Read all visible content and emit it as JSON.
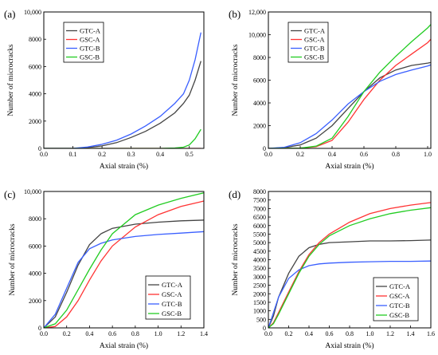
{
  "chart_data": [
    {
      "type": "line",
      "panel_label": "(a)",
      "xlabel": "Axial strain (%)",
      "ylabel": "Number of microcracks",
      "xlim": [
        0,
        0.55
      ],
      "ylim": [
        0,
        10000
      ],
      "xticks": [
        "0.0",
        "0.1",
        "0.2",
        "0.3",
        "0.4",
        "0.5"
      ],
      "yticks": [
        "0",
        "2000",
        "4000",
        "6000",
        "8000",
        "10,000"
      ],
      "legend_position": "top-left",
      "series": [
        {
          "name": "GTC-A",
          "color": "#444444",
          "x": [
            0,
            0.1,
            0.15,
            0.2,
            0.25,
            0.3,
            0.35,
            0.4,
            0.45,
            0.48,
            0.5,
            0.52,
            0.54
          ],
          "y": [
            0,
            0,
            60,
            180,
            420,
            800,
            1250,
            1850,
            2600,
            3300,
            3900,
            5000,
            6400
          ]
        },
        {
          "name": "GSC-A",
          "color": "#ff3333",
          "x": [
            0,
            0.3,
            0.4,
            0.5,
            0.54
          ],
          "y": [
            0,
            0,
            0,
            0,
            0
          ]
        },
        {
          "name": "GTC-B",
          "color": "#3a5fff",
          "x": [
            0,
            0.1,
            0.15,
            0.2,
            0.25,
            0.3,
            0.35,
            0.4,
            0.45,
            0.48,
            0.5,
            0.52,
            0.54
          ],
          "y": [
            0,
            0,
            100,
            300,
            600,
            1050,
            1650,
            2350,
            3300,
            4000,
            5000,
            6500,
            8500
          ]
        },
        {
          "name": "GSC-B",
          "color": "#22cc22",
          "x": [
            0,
            0.4,
            0.45,
            0.48,
            0.5,
            0.52,
            0.54
          ],
          "y": [
            0,
            0,
            30,
            90,
            250,
            700,
            1400
          ]
        }
      ]
    },
    {
      "type": "line",
      "panel_label": "(b)",
      "xlabel": "Axial strain (%)",
      "ylabel": "Number of microcracks",
      "xlim": [
        0,
        1.02
      ],
      "ylim": [
        0,
        12000
      ],
      "xticks": [
        "0.0",
        "0.2",
        "0.4",
        "0.6",
        "0.8",
        "1.0"
      ],
      "yticks": [
        "0",
        "2000",
        "4000",
        "6000",
        "8000",
        "10,000",
        "12,000"
      ],
      "legend_position": "top-left",
      "series": [
        {
          "name": "GTC-A",
          "color": "#444444",
          "x": [
            0,
            0.1,
            0.2,
            0.3,
            0.4,
            0.5,
            0.6,
            0.7,
            0.8,
            0.9,
            1.0,
            1.02
          ],
          "y": [
            0,
            60,
            300,
            900,
            2000,
            3500,
            5000,
            6200,
            6900,
            7300,
            7500,
            7550
          ]
        },
        {
          "name": "GSC-A",
          "color": "#ff3333",
          "x": [
            0,
            0.2,
            0.3,
            0.4,
            0.5,
            0.6,
            0.7,
            0.8,
            0.9,
            1.0,
            1.02
          ],
          "y": [
            0,
            20,
            150,
            700,
            2300,
            4300,
            6000,
            7300,
            8300,
            9300,
            9600
          ]
        },
        {
          "name": "GTC-B",
          "color": "#3a5fff",
          "x": [
            0,
            0.1,
            0.2,
            0.3,
            0.4,
            0.5,
            0.6,
            0.7,
            0.8,
            0.9,
            1.0,
            1.02
          ],
          "y": [
            0,
            100,
            500,
            1300,
            2500,
            3900,
            5000,
            5900,
            6500,
            6900,
            7250,
            7350
          ]
        },
        {
          "name": "GSC-B",
          "color": "#22cc22",
          "x": [
            0,
            0.2,
            0.3,
            0.4,
            0.5,
            0.6,
            0.7,
            0.8,
            0.9,
            1.0,
            1.02
          ],
          "y": [
            0,
            20,
            200,
            900,
            2800,
            5000,
            6700,
            8100,
            9400,
            10600,
            10900
          ]
        }
      ]
    },
    {
      "type": "line",
      "panel_label": "(c)",
      "xlabel": "Axial strain (%)",
      "ylabel": "Number of microcracks",
      "xlim": [
        0,
        1.4
      ],
      "ylim": [
        0,
        10000
      ],
      "xticks": [
        "0.0",
        "0.2",
        "0.4",
        "0.6",
        "0.8",
        "1.0",
        "1.2",
        "1.4"
      ],
      "yticks": [
        "0",
        "2000",
        "4000",
        "6000",
        "8000",
        "10,000"
      ],
      "legend_position": "bottom-right",
      "series": [
        {
          "name": "GTC-A",
          "color": "#444444",
          "x": [
            0,
            0.1,
            0.2,
            0.3,
            0.4,
            0.5,
            0.6,
            0.8,
            1.0,
            1.2,
            1.4
          ],
          "y": [
            0,
            800,
            2600,
            4600,
            6100,
            6900,
            7300,
            7600,
            7750,
            7850,
            7900
          ]
        },
        {
          "name": "GSC-A",
          "color": "#ff3333",
          "x": [
            0,
            0.1,
            0.2,
            0.3,
            0.4,
            0.5,
            0.6,
            0.8,
            1.0,
            1.2,
            1.4
          ],
          "y": [
            0,
            100,
            800,
            2000,
            3500,
            4900,
            6000,
            7400,
            8300,
            8900,
            9300
          ]
        },
        {
          "name": "GTC-B",
          "color": "#3a5fff",
          "x": [
            0,
            0.1,
            0.2,
            0.3,
            0.4,
            0.5,
            0.6,
            0.8,
            1.0,
            1.2,
            1.4
          ],
          "y": [
            0,
            1000,
            2900,
            4800,
            5800,
            6200,
            6450,
            6700,
            6850,
            6950,
            7050
          ]
        },
        {
          "name": "GSC-B",
          "color": "#22cc22",
          "x": [
            0,
            0.1,
            0.2,
            0.3,
            0.4,
            0.5,
            0.6,
            0.8,
            1.0,
            1.2,
            1.4
          ],
          "y": [
            0,
            300,
            1300,
            2800,
            4300,
            5700,
            6900,
            8300,
            9000,
            9500,
            9900
          ]
        }
      ]
    },
    {
      "type": "line",
      "panel_label": "(d)",
      "xlabel": "Axial strain (%)",
      "ylabel": "Number of microcracks",
      "xlim": [
        0,
        1.6
      ],
      "ylim": [
        0,
        8000
      ],
      "xticks": [
        "0.0",
        "0.2",
        "0.4",
        "0.6",
        "0.8",
        "1.0",
        "1.2",
        "1.4",
        "1.6"
      ],
      "yticks": [
        "0",
        "500",
        "1000",
        "1500",
        "2000",
        "2500",
        "3000",
        "3500",
        "4000",
        "4500",
        "5000",
        "5500",
        "6000",
        "6500",
        "7000",
        "7500",
        "8000"
      ],
      "legend_position": "bottom-right",
      "series": [
        {
          "name": "GTC-A",
          "color": "#444444",
          "x": [
            0,
            0.05,
            0.1,
            0.2,
            0.3,
            0.4,
            0.5,
            0.6,
            0.8,
            1.0,
            1.2,
            1.4,
            1.6
          ],
          "y": [
            0,
            700,
            1800,
            3200,
            4200,
            4700,
            4900,
            5000,
            5050,
            5100,
            5100,
            5120,
            5150
          ]
        },
        {
          "name": "GSC-A",
          "color": "#ff3333",
          "x": [
            0,
            0.05,
            0.1,
            0.2,
            0.3,
            0.4,
            0.5,
            0.6,
            0.8,
            1.0,
            1.2,
            1.4,
            1.6
          ],
          "y": [
            0,
            300,
            900,
            2100,
            3300,
            4300,
            5000,
            5500,
            6200,
            6700,
            7000,
            7200,
            7350
          ]
        },
        {
          "name": "GTC-B",
          "color": "#3a5fff",
          "x": [
            0,
            0.05,
            0.1,
            0.2,
            0.3,
            0.4,
            0.5,
            0.6,
            0.8,
            1.0,
            1.2,
            1.4,
            1.6
          ],
          "y": [
            0,
            900,
            1800,
            2900,
            3400,
            3650,
            3750,
            3800,
            3850,
            3880,
            3900,
            3900,
            3920
          ]
        },
        {
          "name": "GSC-B",
          "color": "#22cc22",
          "x": [
            0,
            0.05,
            0.1,
            0.2,
            0.3,
            0.4,
            0.5,
            0.6,
            0.8,
            1.0,
            1.2,
            1.4,
            1.6
          ],
          "y": [
            0,
            250,
            800,
            2000,
            3200,
            4200,
            4900,
            5400,
            6000,
            6400,
            6700,
            6900,
            7050
          ]
        }
      ]
    }
  ]
}
